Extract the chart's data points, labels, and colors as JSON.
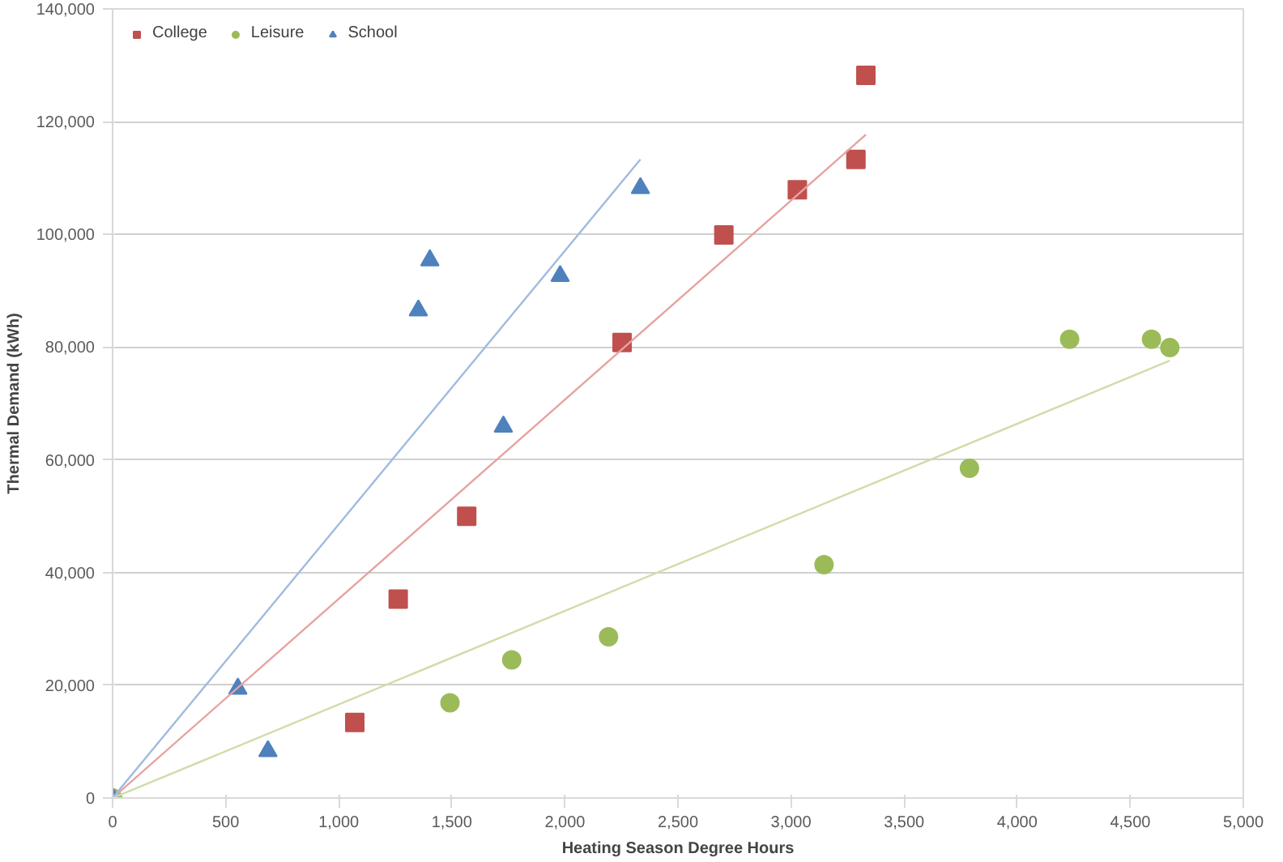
{
  "chart_data": {
    "type": "scatter",
    "xlabel": "Heating Season Degree Hours",
    "ylabel": "Thermal Demand (kWh)",
    "xlim": [
      0,
      5000
    ],
    "ylim": [
      0,
      140000
    ],
    "xticks": [
      {
        "value": 0,
        "label": "0"
      },
      {
        "value": 500,
        "label": "500"
      },
      {
        "value": 1000,
        "label": "1,000"
      },
      {
        "value": 1500,
        "label": "1,500"
      },
      {
        "value": 2000,
        "label": "2,000"
      },
      {
        "value": 2500,
        "label": "2,500"
      },
      {
        "value": 3000,
        "label": "3,000"
      },
      {
        "value": 3500,
        "label": "3,500"
      },
      {
        "value": 4000,
        "label": "4,000"
      },
      {
        "value": 4500,
        "label": "4,500"
      },
      {
        "value": 5000,
        "label": "5,000"
      }
    ],
    "yticks": [
      {
        "value": 0,
        "label": "0"
      },
      {
        "value": 20000,
        "label": "20,000"
      },
      {
        "value": 40000,
        "label": "40,000"
      },
      {
        "value": 60000,
        "label": "60,000"
      },
      {
        "value": 80000,
        "label": "80,000"
      },
      {
        "value": 100000,
        "label": "100,000"
      },
      {
        "value": 120000,
        "label": "120,000"
      },
      {
        "value": 140000,
        "label": "140,000"
      }
    ],
    "grid": "y",
    "legend": "top left",
    "series": [
      {
        "name": "College",
        "color": "#c0504d",
        "marker": "square",
        "x": [
          1071,
          1263,
          1566,
          2253,
          2703,
          3028,
          3287,
          3331
        ],
        "values": [
          13400,
          35300,
          50000,
          80800,
          99900,
          107900,
          113300,
          128200
        ]
      },
      {
        "name": "Leisure",
        "color": "#9bbb59",
        "marker": "circle",
        "x": [
          0,
          1492,
          1765,
          2193,
          3146,
          3789,
          4232,
          4594,
          4675
        ],
        "values": [
          0,
          16900,
          24500,
          28600,
          41400,
          58500,
          81400,
          81400,
          79900
        ]
      },
      {
        "name": "School",
        "color": "#4f81bd",
        "marker": "triangle",
        "x": [
          0,
          554,
          687,
          1352,
          1403,
          1728,
          1979,
          2334
        ],
        "values": [
          0,
          19400,
          8300,
          86500,
          95400,
          65900,
          92600,
          108200
        ]
      },
      {
        "type": "line",
        "color": "#e6a3a1",
        "marker": "none",
        "x": [
          0,
          3331
        ],
        "values": [
          0,
          117700
        ]
      },
      {
        "type": "line",
        "color": "#cfdca8",
        "marker": "none",
        "x": [
          0,
          4675
        ],
        "values": [
          0,
          77600
        ]
      },
      {
        "type": "line",
        "color": "#9fbbe0",
        "marker": "none",
        "x": [
          0,
          2334
        ],
        "values": [
          0,
          113300
        ]
      }
    ]
  }
}
